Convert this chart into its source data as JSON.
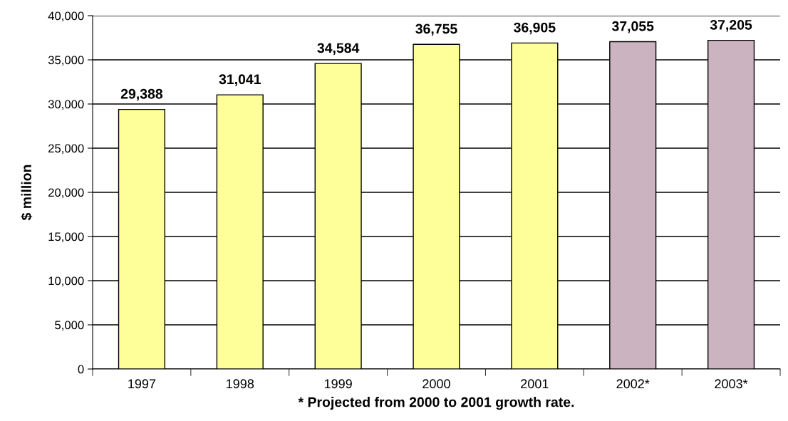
{
  "chart_data": {
    "type": "bar",
    "categories": [
      "1997",
      "1998",
      "1999",
      "2000",
      "2001",
      "2002*",
      "2003*"
    ],
    "values": [
      29388,
      31041,
      34584,
      36755,
      36905,
      37055,
      37205
    ],
    "value_labels": [
      "29,388",
      "31,041",
      "34,584",
      "36,755",
      "36,905",
      "37,055",
      "37,205"
    ],
    "colors": [
      "#ffff99",
      "#ffff99",
      "#ffff99",
      "#ffff99",
      "#ffff99",
      "#ccb3c0",
      "#ccb3c0"
    ],
    "ylabel": "$ million",
    "xlabel": "* Projected from 2000 to 2001 growth rate.",
    "ylim": [
      0,
      40000
    ],
    "yticks": [
      {
        "value": 0,
        "label": "0"
      },
      {
        "value": 5000,
        "label": "5,000"
      },
      {
        "value": 10000,
        "label": "10,000"
      },
      {
        "value": 15000,
        "label": "15,000"
      },
      {
        "value": 20000,
        "label": "20,000"
      },
      {
        "value": 25000,
        "label": "25,000"
      },
      {
        "value": 30000,
        "label": "30,000"
      },
      {
        "value": 35000,
        "label": "35,000"
      },
      {
        "value": 40000,
        "label": "40,000"
      }
    ],
    "grid": "y"
  }
}
